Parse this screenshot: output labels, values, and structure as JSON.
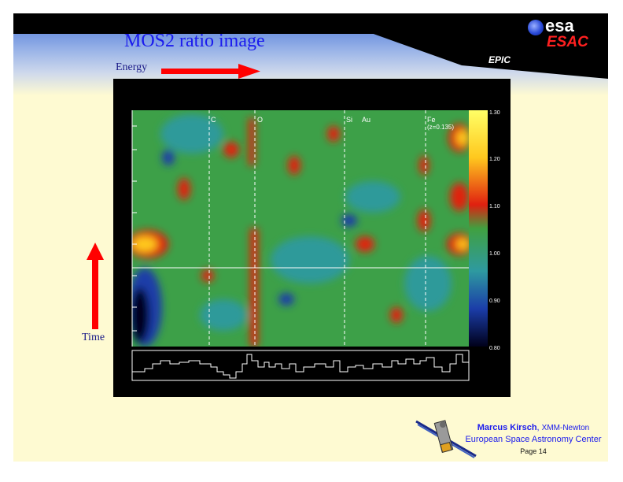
{
  "slide": {
    "title": "MOS2 ratio image",
    "logo": {
      "esa_text": "esa",
      "esac_text": "ESAC"
    },
    "instrument_label": "EPIC",
    "energy_label": "Energy",
    "time_label": "Time"
  },
  "colors": {
    "title": "#1a1aee",
    "arrow": "#ff0000",
    "slide_background": "#fefad2",
    "header": "#000000"
  },
  "plot": {
    "element_lines": [
      {
        "label": "C"
      },
      {
        "label": "O"
      },
      {
        "label": "Si"
      },
      {
        "label": "Au"
      },
      {
        "label": "Fe"
      }
    ],
    "annotation": "(z=0.135)",
    "colorbar": {
      "ticks": [
        "1.30",
        "1.20",
        "1.10",
        "1.00",
        "0.90",
        "0.80"
      ],
      "range": [
        0.8,
        1.3
      ]
    }
  },
  "footer": {
    "author": "Marcus Kirsch",
    "mission": "XMM-Newton",
    "organization": "European Space Astronomy Center",
    "page": "Page 14"
  }
}
